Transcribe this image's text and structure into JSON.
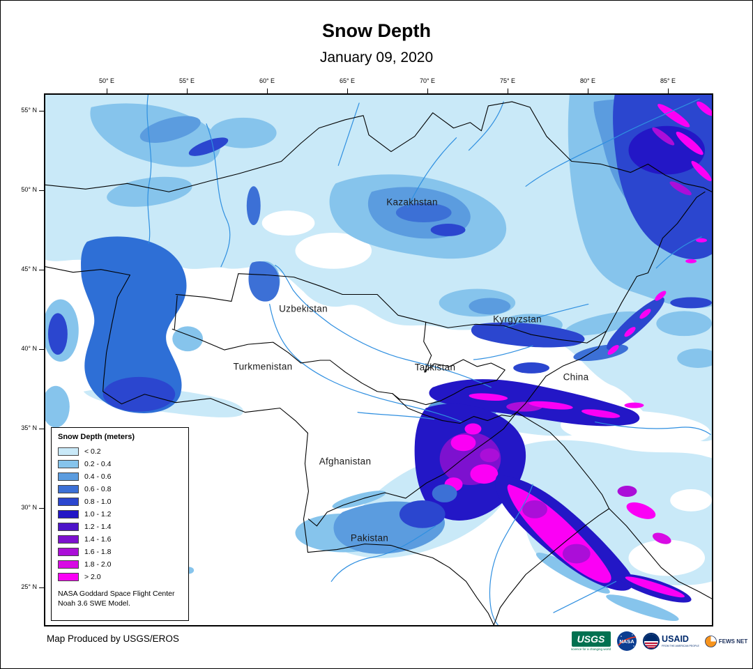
{
  "page": {
    "title": "Snow Depth",
    "subtitle": "January 09, 2020"
  },
  "axes": {
    "longitude_labels": [
      "50° E",
      "55° E",
      "60° E",
      "65° E",
      "70° E",
      "75° E",
      "80° E",
      "85° E"
    ],
    "latitude_labels": [
      "55° N",
      "50° N",
      "45° N",
      "40° N",
      "35° N",
      "30° N",
      "25° N"
    ]
  },
  "map": {
    "country_labels": [
      {
        "name": "Kazakhstan"
      },
      {
        "name": "Uzbekistan"
      },
      {
        "name": "Kyrgyzstan"
      },
      {
        "name": "Turkmenistan"
      },
      {
        "name": "Tajikistan"
      },
      {
        "name": "China"
      },
      {
        "name": "Afghanistan"
      },
      {
        "name": "Pakistan"
      }
    ]
  },
  "legend": {
    "title": "Snow Depth (meters)",
    "entries": [
      {
        "label": "< 0.2",
        "color": "#c9e9f8"
      },
      {
        "label": "0.2 - 0.4",
        "color": "#86c4ec"
      },
      {
        "label": "0.4 - 0.6",
        "color": "#5b9cdf"
      },
      {
        "label": "0.6 - 0.8",
        "color": "#3c70d6"
      },
      {
        "label": "0.8 - 1.0",
        "color": "#2b46cf"
      },
      {
        "label": "1.0 - 1.2",
        "color": "#2317c6"
      },
      {
        "label": "1.2 - 1.4",
        "color": "#4d14c9"
      },
      {
        "label": "1.4 - 1.6",
        "color": "#7d11cf"
      },
      {
        "label": "1.6 - 1.8",
        "color": "#ab0ed8"
      },
      {
        "label": "1.8 - 2.0",
        "color": "#d80be4"
      },
      {
        "label": "> 2.0",
        "color": "#fb00f5"
      }
    ],
    "source_note_line1": "NASA Goddard Space Flight Center",
    "source_note_line2": "Noah 3.6 SWE Model."
  },
  "footer": {
    "credit": "Map Produced by USGS/EROS",
    "logos": {
      "usgs": {
        "text": "USGS",
        "tagline": "science for a changing world"
      },
      "nasa": {
        "text": "NASA"
      },
      "usaid": {
        "text": "USAID",
        "tagline": "FROM THE AMERICAN PEOPLE"
      },
      "fewsnet": {
        "text": "FEWS NET"
      }
    }
  }
}
